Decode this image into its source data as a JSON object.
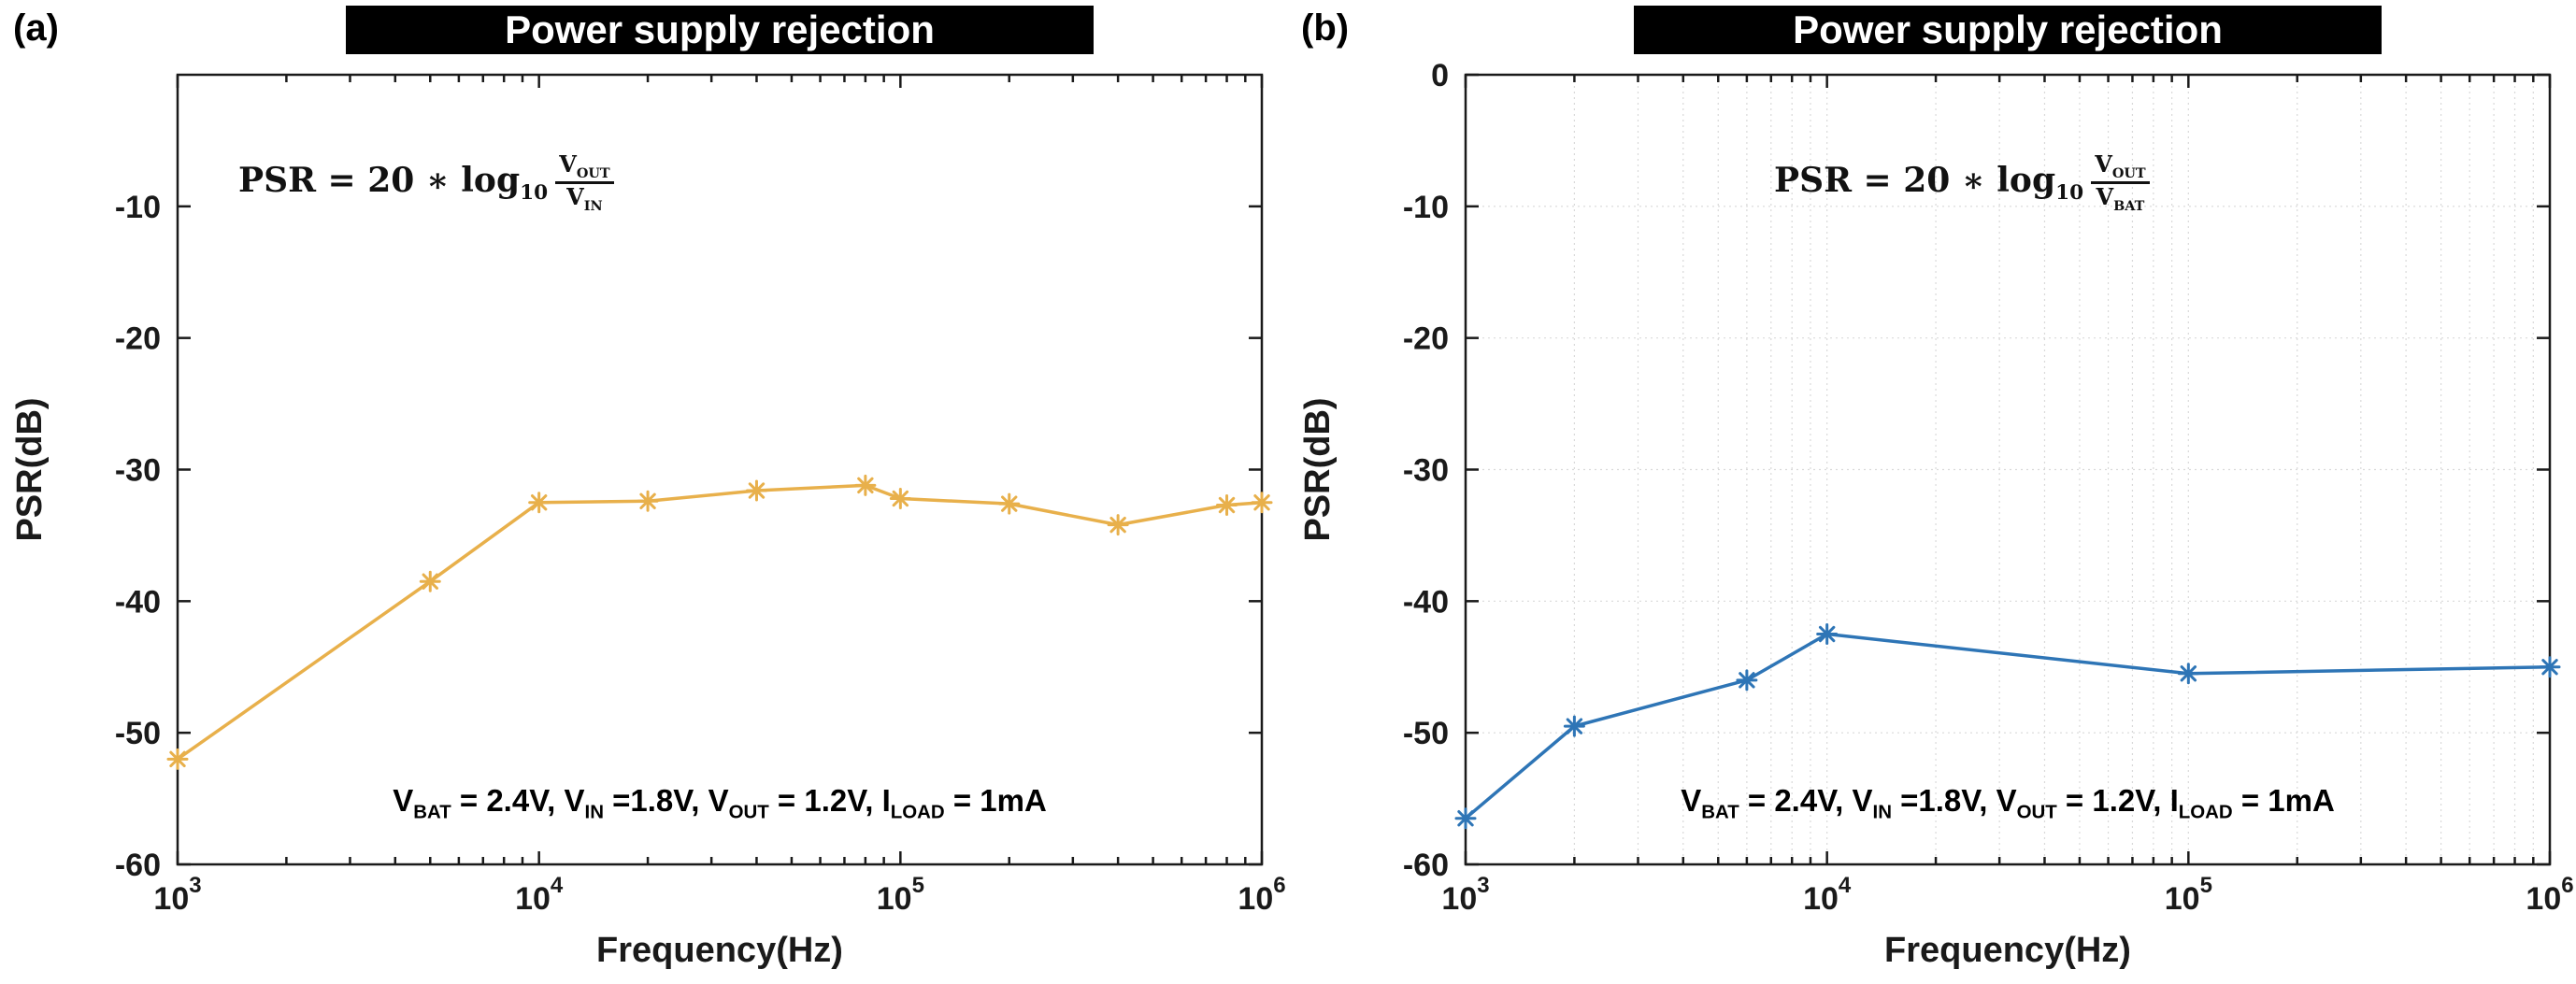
{
  "chart_data": [
    {
      "type": "line",
      "panel_label": "(a)",
      "title": "Power supply rejection",
      "xlabel": "Frequency(Hz)",
      "ylabel": "PSR(dB)",
      "x_scale": "log",
      "xlim": [
        1000,
        1000000
      ],
      "ylim": [
        -60,
        0
      ],
      "xticks": [
        1000,
        10000,
        100000,
        1000000
      ],
      "xtick_labels": [
        "10^3",
        "10^4",
        "10^5",
        "10^6"
      ],
      "yticks": [
        -10,
        -20,
        -30,
        -40,
        -50,
        -60
      ],
      "grid": false,
      "legend": "none",
      "series": [
        {
          "name": "PSR (VOUT/VIN)",
          "color": "#E8B04B",
          "marker": "asterisk",
          "x": [
            1000,
            5000,
            10000,
            20000,
            40000,
            80000,
            100000,
            200000,
            400000,
            800000,
            1000000
          ],
          "y": [
            -52,
            -38.5,
            -32.5,
            -32.4,
            -31.6,
            -31.2,
            -32.2,
            -32.6,
            -34.2,
            -32.7,
            -32.5
          ]
        }
      ],
      "formula": [
        {
          "t": "PSR = 20 ∗ log"
        },
        {
          "sub": "10"
        },
        {
          "frac": {
            "num": [
              {
                "t": "V"
              },
              {
                "sub": "OUT"
              }
            ],
            "den": [
              {
                "t": "V"
              },
              {
                "sub": "IN"
              }
            ]
          }
        }
      ],
      "condition": [
        {
          "t": "V"
        },
        {
          "sub": "BAT"
        },
        {
          "t": " = 2.4V, V"
        },
        {
          "sub": "IN"
        },
        {
          "t": " =1.8V, V"
        },
        {
          "sub": "OUT"
        },
        {
          "t": " = 1.2V, I"
        },
        {
          "sub": "LOAD"
        },
        {
          "t": " = 1mA"
        }
      ]
    },
    {
      "type": "line",
      "panel_label": "(b)",
      "title": "Power supply rejection",
      "xlabel": "Frequency(Hz)",
      "ylabel": "PSR(dB)",
      "x_scale": "log",
      "xlim": [
        1000,
        1000000
      ],
      "ylim": [
        -60,
        0
      ],
      "xticks": [
        1000,
        10000,
        100000,
        1000000
      ],
      "xtick_labels": [
        "10^3",
        "10^4",
        "10^5",
        "10^6"
      ],
      "yticks": [
        0,
        -10,
        -20,
        -30,
        -40,
        -50,
        -60
      ],
      "grid": true,
      "legend": "none",
      "series": [
        {
          "name": "PSR (VOUT/VBAT)",
          "color": "#2E75B6",
          "marker": "asterisk",
          "x": [
            1000,
            2000,
            6000,
            10000,
            100000,
            1000000
          ],
          "y": [
            -56.5,
            -49.5,
            -46,
            -42.5,
            -45.5,
            -45
          ]
        }
      ],
      "formula": [
        {
          "t": "PSR = 20 ∗ log"
        },
        {
          "sub": "10"
        },
        {
          "frac": {
            "num": [
              {
                "t": "V"
              },
              {
                "sub": "OUT"
              }
            ],
            "den": [
              {
                "t": "V"
              },
              {
                "sub": "BAT"
              }
            ]
          }
        }
      ],
      "condition": [
        {
          "t": "V"
        },
        {
          "sub": "BAT"
        },
        {
          "t": " = 2.4V, V"
        },
        {
          "sub": "IN"
        },
        {
          "t": " =1.8V, V"
        },
        {
          "sub": "OUT"
        },
        {
          "t": " = 1.2V, I"
        },
        {
          "sub": "LOAD"
        },
        {
          "t": " = 1mA"
        }
      ]
    }
  ]
}
